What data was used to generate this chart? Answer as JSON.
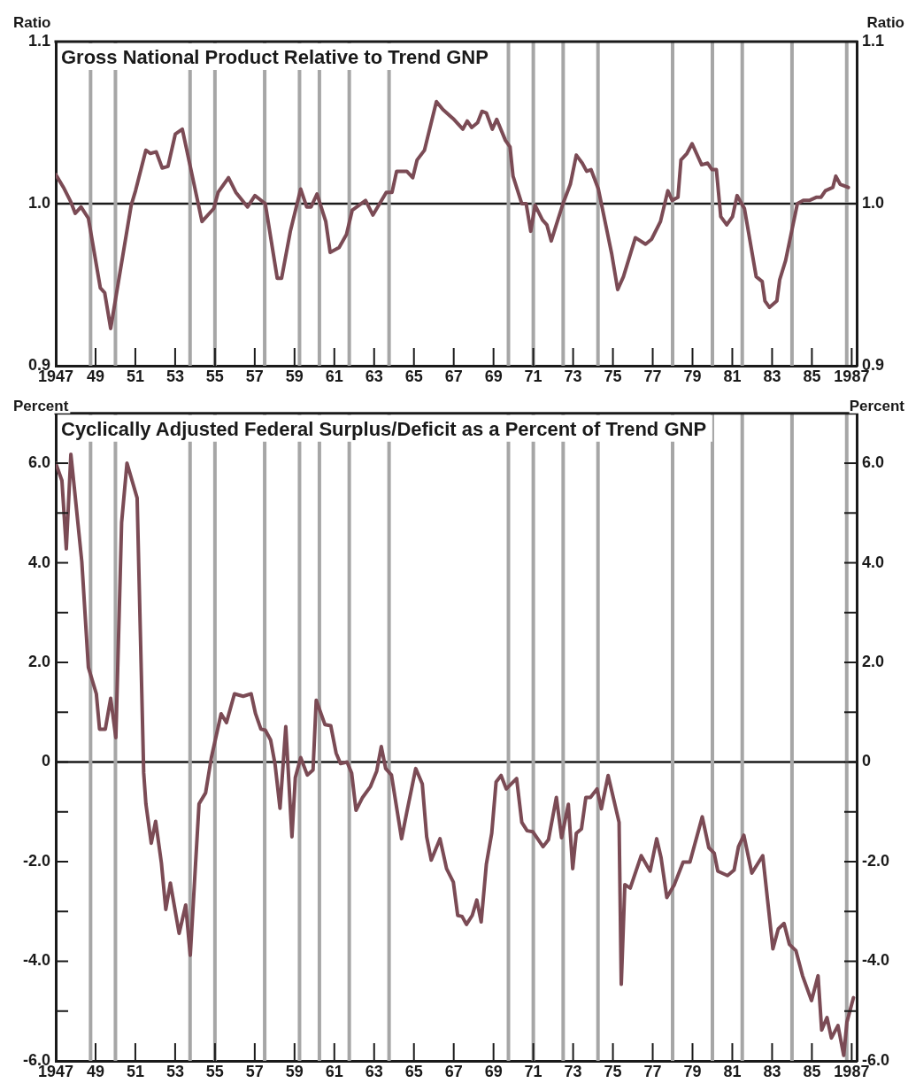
{
  "chart_data": [
    {
      "type": "line",
      "title": "Gross National Product Relative to Trend GNP",
      "ylabel": "Ratio",
      "y2label": "Ratio",
      "marker": "none",
      "line_style": "solid",
      "xlim": [
        1947,
        1987.25
      ],
      "xticks": [
        {
          "value": 1947,
          "label": "1947"
        },
        {
          "value": 1949,
          "label": "49"
        },
        {
          "value": 1951,
          "label": "51"
        },
        {
          "value": 1953,
          "label": "53"
        },
        {
          "value": 1955,
          "label": "55"
        },
        {
          "value": 1957,
          "label": "57"
        },
        {
          "value": 1959,
          "label": "59"
        },
        {
          "value": 1961,
          "label": "61"
        },
        {
          "value": 1963,
          "label": "63"
        },
        {
          "value": 1965,
          "label": "65"
        },
        {
          "value": 1967,
          "label": "67"
        },
        {
          "value": 1969,
          "label": "69"
        },
        {
          "value": 1971,
          "label": "71"
        },
        {
          "value": 1973,
          "label": "73"
        },
        {
          "value": 1975,
          "label": "75"
        },
        {
          "value": 1977,
          "label": "77"
        },
        {
          "value": 1979,
          "label": "79"
        },
        {
          "value": 1981,
          "label": "81"
        },
        {
          "value": 1983,
          "label": "83"
        },
        {
          "value": 1985,
          "label": "85"
        },
        {
          "value": 1987,
          "label": "1987"
        }
      ],
      "ylim": [
        0.9,
        1.1
      ],
      "yticks": [
        0.9,
        {
          "value": 1,
          "label": "1.0"
        },
        1.1
      ],
      "y2lim": [
        0.9,
        1.1
      ],
      "y2ticks": [
        0.9,
        {
          "value": 1,
          "label": "1.0"
        },
        1.1
      ],
      "series": [
        {
          "color": "#7b4b55",
          "x": [
            1947.0,
            1947.39,
            1947.76,
            1947.98,
            1948.27,
            1948.64,
            1949.24,
            1949.46,
            1949.76,
            1950.79,
            1951.01,
            1951.53,
            1951.76,
            1952.05,
            1952.35,
            1952.64,
            1953.01,
            1953.36,
            1954.35,
            1954.94,
            1955.16,
            1955.68,
            1956.05,
            1956.64,
            1957.01,
            1957.53,
            1958.13,
            1958.35,
            1958.79,
            1959.31,
            1959.61,
            1959.83,
            1960.13,
            1960.57,
            1960.79,
            1961.24,
            1961.61,
            1961.9,
            1962.57,
            1962.94,
            1963.61,
            1963.9,
            1964.13,
            1964.64,
            1964.94,
            1965.16,
            1965.53,
            1966.13,
            1966.46,
            1967.01,
            1967.46,
            1967.68,
            1967.9,
            1968.2,
            1968.42,
            1968.64,
            1968.94,
            1969.16,
            1969.6,
            1969.83,
            1969.98,
            1970.42,
            1970.64,
            1970.87,
            1971.09,
            1971.46,
            1971.68,
            1971.9,
            1972.49,
            1972.86,
            1973.16,
            1973.46,
            1973.68,
            1973.9,
            1974.27,
            1974.94,
            1975.24,
            1975.53,
            1976.13,
            1976.64,
            1976.94,
            1977.39,
            1977.76,
            1977.98,
            1978.27,
            1978.42,
            1978.72,
            1978.98,
            1979.46,
            1979.76,
            1979.98,
            1980.2,
            1980.42,
            1980.72,
            1981.01,
            1981.24,
            1981.61,
            1982.2,
            1982.5,
            1982.64,
            1982.87,
            1983.24,
            1983.38,
            1983.68,
            1984.27,
            1984.57,
            1984.87,
            1985.24,
            1985.46,
            1985.68,
            1986.05,
            1986.2,
            1986.42,
            1986.83
          ],
          "values": [
            1.018,
            1.01,
            1.001,
            0.994,
            0.998,
            0.991,
            0.948,
            0.945,
            0.923,
            0.999,
            1.008,
            1.033,
            1.031,
            1.032,
            1.022,
            1.023,
            1.043,
            1.046,
            0.989,
            0.997,
            1.007,
            1.016,
            1.007,
            0.998,
            1.005,
            1.0,
            0.954,
            0.954,
            0.983,
            1.009,
            0.998,
            0.998,
            1.006,
            0.989,
            0.97,
            0.973,
            0.981,
            0.996,
            1.002,
            0.993,
            1.007,
            1.007,
            1.02,
            1.02,
            1.016,
            1.027,
            1.033,
            1.063,
            1.058,
            1.052,
            1.046,
            1.051,
            1.047,
            1.05,
            1.057,
            1.056,
            1.046,
            1.052,
            1.039,
            1.035,
            1.017,
            1.0,
            1.0,
            0.983,
            0.999,
            0.99,
            0.987,
            0.977,
            1.0,
            1.012,
            1.03,
            1.025,
            1.02,
            1.021,
            1.009,
            0.969,
            0.947,
            0.955,
            0.979,
            0.975,
            0.978,
            0.989,
            1.008,
            1.002,
            1.004,
            1.027,
            1.031,
            1.037,
            1.024,
            1.025,
            1.021,
            1.021,
            0.992,
            0.987,
            0.992,
            1.005,
            0.997,
            0.955,
            0.952,
            0.94,
            0.936,
            0.94,
            0.953,
            0.965,
            1.0,
            1.002,
            1.002,
            1.004,
            1.004,
            1.008,
            1.01,
            1.017,
            1.012,
            1.01
          ]
        }
      ],
      "ref_lines": [
        {
          "axis": "y",
          "value": 1,
          "color": "#1a1a1a"
        },
        {
          "axis": "x",
          "value": 1948.75,
          "color": "#a6a6a6"
        },
        {
          "axis": "x",
          "value": 1950.0,
          "color": "#a6a6a6"
        },
        {
          "axis": "x",
          "value": 1953.75,
          "color": "#a6a6a6"
        },
        {
          "axis": "x",
          "value": 1955.0,
          "color": "#a6a6a6"
        },
        {
          "axis": "x",
          "value": 1957.5,
          "color": "#a6a6a6"
        },
        {
          "axis": "x",
          "value": 1959.25,
          "color": "#a6a6a6"
        },
        {
          "axis": "x",
          "value": 1960.25,
          "color": "#a6a6a6"
        },
        {
          "axis": "x",
          "value": 1961.75,
          "color": "#a6a6a6"
        },
        {
          "axis": "x",
          "value": 1963.75,
          "color": "#a6a6a6"
        },
        {
          "axis": "x",
          "value": 1969.75,
          "color": "#a6a6a6"
        },
        {
          "axis": "x",
          "value": 1971.0,
          "color": "#a6a6a6"
        },
        {
          "axis": "x",
          "value": 1972.5,
          "color": "#a6a6a6"
        },
        {
          "axis": "x",
          "value": 1974.25,
          "color": "#a6a6a6"
        },
        {
          "axis": "x",
          "value": 1978.0,
          "color": "#a6a6a6"
        },
        {
          "axis": "x",
          "value": 1980.0,
          "color": "#a6a6a6"
        },
        {
          "axis": "x",
          "value": 1981.5,
          "color": "#a6a6a6"
        },
        {
          "axis": "x",
          "value": 1984.0,
          "color": "#a6a6a6"
        },
        {
          "axis": "x",
          "value": 1986.75,
          "color": "#a6a6a6"
        }
      ]
    },
    {
      "type": "line",
      "title": "Cyclically Adjusted Federal Surplus/Deficit as a Percent of Trend GNP",
      "ylabel": "Percent",
      "y2label": "Percent",
      "marker": "none",
      "line_style": "solid",
      "xlim": [
        1947,
        1987.25
      ],
      "xticks": [
        {
          "value": 1947,
          "label": "1947"
        },
        {
          "value": 1949,
          "label": "49"
        },
        {
          "value": 1951,
          "label": "51"
        },
        {
          "value": 1953,
          "label": "53"
        },
        {
          "value": 1955,
          "label": "55"
        },
        {
          "value": 1957,
          "label": "57"
        },
        {
          "value": 1959,
          "label": "59"
        },
        {
          "value": 1961,
          "label": "61"
        },
        {
          "value": 1963,
          "label": "63"
        },
        {
          "value": 1965,
          "label": "65"
        },
        {
          "value": 1967,
          "label": "67"
        },
        {
          "value": 1969,
          "label": "69"
        },
        {
          "value": 1971,
          "label": "71"
        },
        {
          "value": 1973,
          "label": "73"
        },
        {
          "value": 1975,
          "label": "75"
        },
        {
          "value": 1977,
          "label": "77"
        },
        {
          "value": 1979,
          "label": "79"
        },
        {
          "value": 1981,
          "label": "81"
        },
        {
          "value": 1983,
          "label": "83"
        },
        {
          "value": 1985,
          "label": "85"
        },
        {
          "value": 1987,
          "label": "1987"
        }
      ],
      "ylim": [
        -6,
        7
      ],
      "yticks": [
        {
          "value": -6,
          "label": "-6.0"
        },
        {
          "value": -5,
          "label": null
        },
        {
          "value": -4,
          "label": "-4.0"
        },
        {
          "value": -3,
          "label": null
        },
        {
          "value": -2,
          "label": "-2.0"
        },
        {
          "value": -1,
          "label": null
        },
        0,
        {
          "value": 1,
          "label": null
        },
        {
          "value": 2,
          "label": "2.0"
        },
        {
          "value": 3,
          "label": null
        },
        {
          "value": 4,
          "label": "4.0"
        },
        {
          "value": 5,
          "label": null
        },
        {
          "value": 6,
          "label": "6.0"
        }
      ],
      "y2lim": [
        -6,
        7
      ],
      "y2ticks": [
        {
          "value": -6,
          "label": "-6.0"
        },
        {
          "value": -5,
          "label": null
        },
        {
          "value": -4,
          "label": "-4.0"
        },
        {
          "value": -3,
          "label": null
        },
        {
          "value": -2,
          "label": "-2.0"
        },
        {
          "value": -1,
          "label": null
        },
        0,
        {
          "value": 1,
          "label": null
        },
        {
          "value": 2,
          "label": "2.0"
        },
        {
          "value": 3,
          "label": null
        },
        {
          "value": 4,
          "label": "4.0"
        },
        {
          "value": 5,
          "label": null
        },
        {
          "value": 6,
          "label": "6.0"
        }
      ],
      "series": [
        {
          "color": "#7b4b55",
          "x": [
            1947.0,
            1947.31,
            1947.53,
            1947.76,
            1947.93,
            1948.31,
            1948.64,
            1949.04,
            1949.2,
            1949.49,
            1949.76,
            1950.02,
            1950.31,
            1950.58,
            1951.09,
            1951.42,
            1951.53,
            1951.8,
            1952.02,
            1952.31,
            1952.53,
            1952.76,
            1953.2,
            1953.53,
            1953.76,
            1954.2,
            1954.53,
            1954.82,
            1955.31,
            1955.58,
            1955.98,
            1956.42,
            1956.82,
            1957.04,
            1957.31,
            1957.53,
            1957.8,
            1958.02,
            1958.27,
            1958.56,
            1958.87,
            1959.04,
            1959.31,
            1959.64,
            1959.93,
            1960.09,
            1960.53,
            1960.82,
            1961.09,
            1961.31,
            1961.64,
            1961.87,
            1962.09,
            1962.42,
            1962.82,
            1963.13,
            1963.36,
            1963.58,
            1963.87,
            1964.38,
            1964.64,
            1965.09,
            1965.42,
            1965.64,
            1965.87,
            1966.31,
            1966.64,
            1966.98,
            1967.2,
            1967.42,
            1967.64,
            1967.93,
            1968.16,
            1968.38,
            1968.64,
            1968.91,
            1969.13,
            1969.38,
            1969.64,
            1970.16,
            1970.42,
            1970.69,
            1970.98,
            1971.49,
            1971.76,
            1972.16,
            1972.42,
            1972.76,
            1972.98,
            1973.16,
            1973.42,
            1973.64,
            1973.87,
            1974.2,
            1974.42,
            1974.76,
            1975.31,
            1975.42,
            1975.6,
            1975.87,
            1976.42,
            1976.87,
            1977.2,
            1977.42,
            1977.71,
            1978.09,
            1978.53,
            1978.87,
            1979.49,
            1979.82,
            1980.09,
            1980.27,
            1980.76,
            1981.09,
            1981.31,
            1981.58,
            1981.98,
            1982.53,
            1983.04,
            1983.31,
            1983.6,
            1983.87,
            1984.2,
            1984.53,
            1984.98,
            1985.31,
            1985.49,
            1985.76,
            1985.98,
            1986.31,
            1986.6,
            1986.76,
            1987.09
          ],
          "values": [
            6.0,
            5.65,
            4.28,
            6.18,
            5.52,
            4.02,
            1.9,
            1.37,
            0.66,
            0.66,
            1.28,
            0.49,
            4.81,
            6.0,
            5.3,
            -0.22,
            -0.84,
            -1.63,
            -1.19,
            -2.03,
            -2.96,
            -2.43,
            -3.44,
            -2.87,
            -3.88,
            -0.84,
            -0.62,
            0.09,
            0.97,
            0.79,
            1.37,
            1.32,
            1.37,
            0.97,
            0.66,
            0.64,
            0.44,
            -0.04,
            -0.93,
            0.71,
            -1.5,
            -0.31,
            0.09,
            -0.26,
            -0.16,
            1.24,
            0.75,
            0.73,
            0.18,
            -0.03,
            0.0,
            -0.22,
            -0.97,
            -0.71,
            -0.49,
            -0.18,
            0.31,
            -0.13,
            -0.26,
            -1.54,
            -1.01,
            -0.13,
            -0.44,
            -1.5,
            -1.97,
            -1.54,
            -2.14,
            -2.41,
            -3.08,
            -3.1,
            -3.26,
            -3.08,
            -2.77,
            -3.21,
            -2.05,
            -1.43,
            -0.4,
            -0.27,
            -0.54,
            -0.33,
            -1.21,
            -1.38,
            -1.4,
            -1.7,
            -1.56,
            -0.71,
            -1.52,
            -0.85,
            -2.14,
            -1.43,
            -1.34,
            -0.71,
            -0.71,
            -0.54,
            -0.94,
            -0.27,
            -1.21,
            -4.46,
            -2.46,
            -2.53,
            -1.88,
            -2.19,
            -1.54,
            -1.92,
            -2.72,
            -2.46,
            -2.01,
            -2.01,
            -1.1,
            -1.72,
            -1.83,
            -2.19,
            -2.28,
            -2.17,
            -1.7,
            -1.47,
            -2.23,
            -1.88,
            -3.75,
            -3.35,
            -3.24,
            -3.66,
            -3.79,
            -4.29,
            -4.79,
            -4.29,
            -5.38,
            -5.13,
            -5.54,
            -5.29,
            -5.89,
            -5.22,
            -4.73
          ]
        }
      ],
      "ref_lines": [
        {
          "axis": "y",
          "value": 0,
          "color": "#1a1a1a"
        },
        {
          "axis": "x",
          "value": 1948.75,
          "color": "#a6a6a6"
        },
        {
          "axis": "x",
          "value": 1950.0,
          "color": "#a6a6a6"
        },
        {
          "axis": "x",
          "value": 1953.75,
          "color": "#a6a6a6"
        },
        {
          "axis": "x",
          "value": 1955.0,
          "color": "#a6a6a6"
        },
        {
          "axis": "x",
          "value": 1957.5,
          "color": "#a6a6a6"
        },
        {
          "axis": "x",
          "value": 1959.25,
          "color": "#a6a6a6"
        },
        {
          "axis": "x",
          "value": 1960.25,
          "color": "#a6a6a6"
        },
        {
          "axis": "x",
          "value": 1961.75,
          "color": "#a6a6a6"
        },
        {
          "axis": "x",
          "value": 1963.75,
          "color": "#a6a6a6"
        },
        {
          "axis": "x",
          "value": 1969.75,
          "color": "#a6a6a6"
        },
        {
          "axis": "x",
          "value": 1971.0,
          "color": "#a6a6a6"
        },
        {
          "axis": "x",
          "value": 1972.5,
          "color": "#a6a6a6"
        },
        {
          "axis": "x",
          "value": 1974.25,
          "color": "#a6a6a6"
        },
        {
          "axis": "x",
          "value": 1978.0,
          "color": "#a6a6a6"
        },
        {
          "axis": "x",
          "value": 1980.0,
          "color": "#a6a6a6"
        },
        {
          "axis": "x",
          "value": 1981.5,
          "color": "#a6a6a6"
        },
        {
          "axis": "x",
          "value": 1984.0,
          "color": "#a6a6a6"
        },
        {
          "axis": "x",
          "value": 1986.75,
          "color": "#a6a6a6"
        }
      ]
    }
  ]
}
